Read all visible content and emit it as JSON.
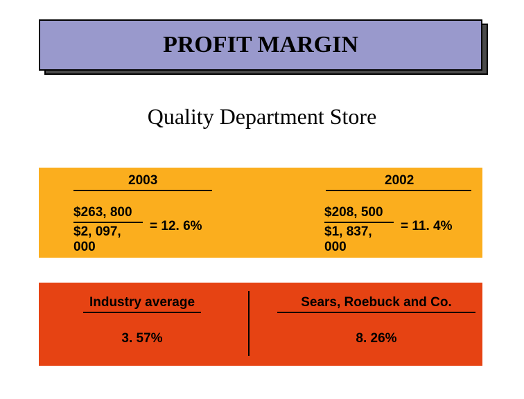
{
  "title": "PROFIT MARGIN",
  "subtitle": "Quality Department Store",
  "colors": {
    "title_bg": "#9999cc",
    "title_shadow": "#4b4b4b",
    "orange_top": "#fbae1e",
    "orange_bottom": "#e64313",
    "text": "#000000",
    "page_bg": "#ffffff"
  },
  "years": {
    "left": {
      "label": "2003",
      "numerator": "$263, 800",
      "denominator": "$2, 097, 000",
      "result": "= 12. 6%"
    },
    "right": {
      "label": "2002",
      "numerator": "$208, 500",
      "denominator": "$1, 837, 000",
      "result": "= 11. 4%"
    }
  },
  "comparisons": {
    "left": {
      "label": "Industry average",
      "value": "3. 57%"
    },
    "right": {
      "label": "Sears, Roebuck and Co.",
      "value": "8. 26%"
    }
  }
}
